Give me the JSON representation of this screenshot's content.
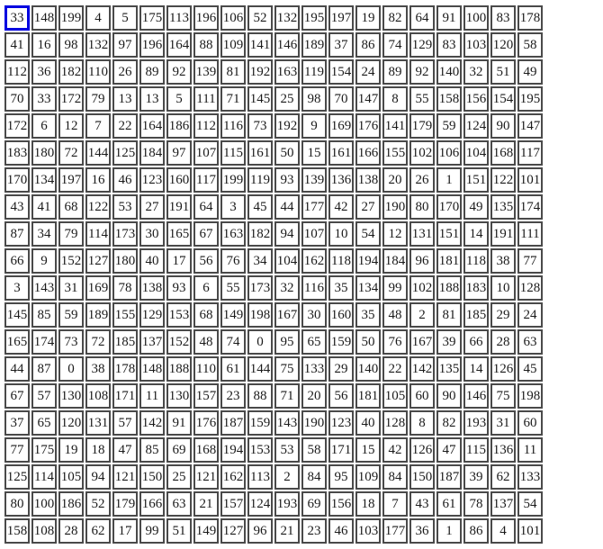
{
  "grid": {
    "rows": 20,
    "cols": 20,
    "selected_cell": {
      "row": 0,
      "col": 0,
      "value": 33
    },
    "colors": {
      "background": "#ffffff",
      "cell_background": "#ffffff",
      "cell_border": "#4a4a4a",
      "selected_border": "#0000e0",
      "text": "#1a1a1a"
    },
    "cells": [
      [
        33,
        148,
        199,
        4,
        5,
        175,
        113,
        196,
        106,
        52,
        132,
        195,
        197,
        19,
        82,
        64,
        91,
        100,
        83,
        178
      ],
      [
        41,
        16,
        98,
        132,
        97,
        196,
        164,
        88,
        109,
        141,
        146,
        189,
        37,
        86,
        74,
        129,
        83,
        103,
        120,
        58
      ],
      [
        112,
        36,
        182,
        110,
        26,
        89,
        92,
        139,
        81,
        192,
        163,
        119,
        154,
        24,
        89,
        92,
        140,
        32,
        51,
        49
      ],
      [
        70,
        33,
        172,
        79,
        13,
        13,
        5,
        111,
        71,
        145,
        25,
        98,
        70,
        147,
        8,
        55,
        158,
        156,
        154,
        195
      ],
      [
        172,
        6,
        12,
        7,
        22,
        164,
        186,
        112,
        116,
        73,
        192,
        9,
        169,
        176,
        141,
        179,
        59,
        124,
        90,
        147
      ],
      [
        183,
        180,
        72,
        144,
        125,
        184,
        97,
        107,
        115,
        161,
        50,
        15,
        161,
        166,
        155,
        102,
        106,
        104,
        168,
        117
      ],
      [
        170,
        134,
        197,
        16,
        46,
        123,
        160,
        117,
        199,
        119,
        93,
        139,
        136,
        138,
        20,
        26,
        1,
        151,
        122,
        101
      ],
      [
        43,
        41,
        68,
        122,
        53,
        27,
        191,
        64,
        3,
        45,
        44,
        177,
        42,
        27,
        190,
        80,
        170,
        49,
        135,
        174
      ],
      [
        87,
        34,
        79,
        114,
        173,
        30,
        165,
        67,
        163,
        182,
        94,
        107,
        10,
        54,
        12,
        131,
        151,
        14,
        191,
        111
      ],
      [
        66,
        9,
        152,
        127,
        180,
        40,
        17,
        56,
        76,
        34,
        104,
        162,
        118,
        194,
        184,
        96,
        181,
        118,
        38,
        77
      ],
      [
        3,
        143,
        31,
        169,
        78,
        138,
        93,
        6,
        55,
        173,
        32,
        116,
        35,
        134,
        99,
        102,
        188,
        183,
        10,
        128
      ],
      [
        145,
        85,
        59,
        189,
        155,
        129,
        153,
        68,
        149,
        198,
        167,
        30,
        160,
        35,
        48,
        2,
        81,
        185,
        29,
        24
      ],
      [
        165,
        174,
        73,
        72,
        185,
        137,
        152,
        48,
        74,
        0,
        95,
        65,
        159,
        50,
        76,
        167,
        39,
        66,
        28,
        63
      ],
      [
        44,
        87,
        0,
        38,
        178,
        148,
        188,
        110,
        61,
        144,
        75,
        133,
        29,
        140,
        22,
        142,
        135,
        14,
        126,
        45
      ],
      [
        67,
        57,
        130,
        108,
        171,
        11,
        130,
        157,
        23,
        88,
        71,
        20,
        56,
        181,
        105,
        60,
        90,
        146,
        75,
        198
      ],
      [
        37,
        65,
        120,
        131,
        57,
        142,
        91,
        176,
        187,
        159,
        143,
        190,
        123,
        40,
        128,
        8,
        82,
        193,
        31,
        60
      ],
      [
        77,
        175,
        19,
        18,
        47,
        85,
        69,
        168,
        194,
        153,
        53,
        58,
        171,
        15,
        42,
        126,
        47,
        115,
        136,
        11
      ],
      [
        125,
        114,
        105,
        94,
        121,
        150,
        25,
        121,
        162,
        113,
        2,
        84,
        95,
        109,
        84,
        150,
        187,
        39,
        62,
        133
      ],
      [
        80,
        100,
        186,
        52,
        179,
        166,
        63,
        21,
        157,
        124,
        193,
        69,
        156,
        18,
        7,
        43,
        61,
        78,
        137,
        54
      ],
      [
        158,
        108,
        28,
        62,
        17,
        99,
        51,
        149,
        127,
        96,
        21,
        23,
        46,
        103,
        177,
        36,
        1,
        86,
        4,
        101
      ]
    ]
  }
}
